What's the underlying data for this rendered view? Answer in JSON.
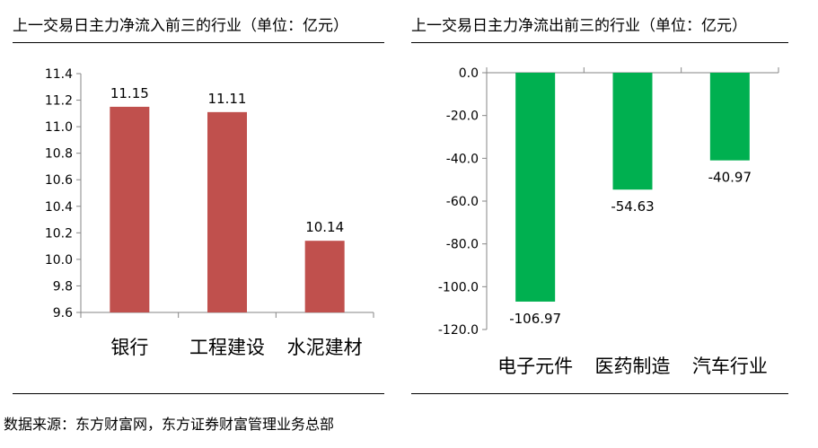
{
  "source_note": "数据来源：东方财富网，东方证券财富管理业务总部",
  "chart_data": [
    {
      "type": "bar",
      "title": "上一交易日主力净流入前三的行业（单位：亿元）",
      "categories": [
        "银行",
        "工程建设",
        "水泥建材"
      ],
      "values": [
        11.15,
        11.11,
        10.14
      ],
      "value_labels": [
        "11.15",
        "11.11",
        "10.14"
      ],
      "yticks": [
        "9.6",
        "9.8",
        "10.0",
        "10.2",
        "10.4",
        "10.6",
        "10.8",
        "11.0",
        "11.2",
        "11.4"
      ],
      "ylim": [
        9.6,
        11.4
      ],
      "bar_color": "#c0504d",
      "grid": false
    },
    {
      "type": "bar",
      "title": "上一交易日主力净流出前三的行业（单位：亿元）",
      "categories": [
        "电子元件",
        "医药制造",
        "汽车行业"
      ],
      "values": [
        -106.97,
        -54.63,
        -40.97
      ],
      "value_labels": [
        "-106.97",
        "-54.63",
        "-40.97"
      ],
      "yticks": [
        "-120.0",
        "-100.0",
        "-80.0",
        "-60.0",
        "-40.0",
        "-20.0",
        "0.0"
      ],
      "ylim": [
        -120,
        0
      ],
      "bar_color": "#00b050",
      "grid": false
    }
  ]
}
